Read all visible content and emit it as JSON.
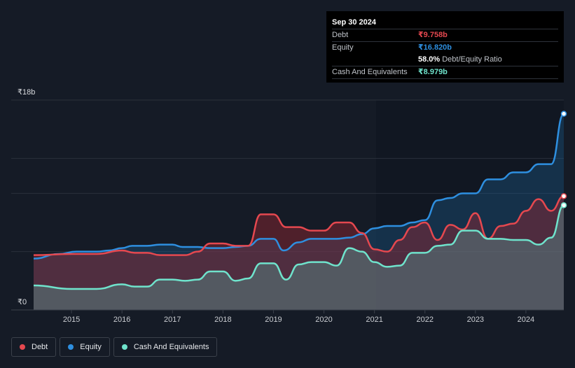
{
  "tooltip": {
    "date": "Sep 30 2024",
    "debt_label": "Debt",
    "debt_value": "₹9.758b",
    "equity_label": "Equity",
    "equity_value": "₹16.820b",
    "ratio_value": "58.0%",
    "ratio_label": "Debt/Equity Ratio",
    "cash_label": "Cash And Equivalents",
    "cash_value": "₹8.979b"
  },
  "legend": {
    "debt": "Debt",
    "equity": "Equity",
    "cash": "Cash And Equivalents"
  },
  "colors": {
    "debt": "#e5484f",
    "equity": "#2e8fe0",
    "cash": "#6fe3cc",
    "background": "#151b26"
  },
  "chart_data": {
    "type": "area",
    "title": "",
    "xlabel": "",
    "ylabel": "",
    "y_tick_labels": [
      "₹18b",
      "₹0"
    ],
    "ylim": [
      0,
      18
    ],
    "xlim": [
      2014.2,
      2024.75
    ],
    "x_ticks": [
      2015,
      2016,
      2017,
      2018,
      2019,
      2020,
      2021,
      2022,
      2023,
      2024
    ],
    "x_tick_labels": [
      "2015",
      "2016",
      "2017",
      "2018",
      "2019",
      "2020",
      "2021",
      "2022",
      "2023",
      "2024"
    ],
    "gridlines": [
      18,
      13,
      10,
      5
    ],
    "series": [
      {
        "name": "Equity",
        "key": "equity",
        "points": [
          [
            2014.25,
            4.4
          ],
          [
            2014.75,
            4.8
          ],
          [
            2015.1,
            5.0
          ],
          [
            2015.5,
            5.0
          ],
          [
            2015.75,
            5.1
          ],
          [
            2016.0,
            5.3
          ],
          [
            2016.2,
            5.5
          ],
          [
            2016.5,
            5.5
          ],
          [
            2016.75,
            5.6
          ],
          [
            2017.0,
            5.6
          ],
          [
            2017.2,
            5.4
          ],
          [
            2017.5,
            5.4
          ],
          [
            2017.75,
            5.3
          ],
          [
            2018.0,
            5.3
          ],
          [
            2018.25,
            5.4
          ],
          [
            2018.5,
            5.5
          ],
          [
            2018.75,
            6.1
          ],
          [
            2019.0,
            6.1
          ],
          [
            2019.2,
            5.1
          ],
          [
            2019.5,
            5.8
          ],
          [
            2019.75,
            6.1
          ],
          [
            2020.0,
            6.1
          ],
          [
            2020.25,
            6.1
          ],
          [
            2020.5,
            6.2
          ],
          [
            2020.75,
            6.5
          ],
          [
            2021.0,
            7.0
          ],
          [
            2021.25,
            7.2
          ],
          [
            2021.5,
            7.2
          ],
          [
            2021.75,
            7.5
          ],
          [
            2022.0,
            7.7
          ],
          [
            2022.25,
            9.4
          ],
          [
            2022.5,
            9.6
          ],
          [
            2022.75,
            10.0
          ],
          [
            2023.0,
            10.0
          ],
          [
            2023.25,
            11.2
          ],
          [
            2023.5,
            11.2
          ],
          [
            2023.75,
            11.8
          ],
          [
            2024.0,
            11.8
          ],
          [
            2024.25,
            12.5
          ],
          [
            2024.5,
            12.5
          ],
          [
            2024.75,
            16.82
          ]
        ]
      },
      {
        "name": "Debt",
        "key": "debt",
        "points": [
          [
            2014.25,
            4.7
          ],
          [
            2015.0,
            4.8
          ],
          [
            2015.5,
            4.8
          ],
          [
            2016.0,
            5.1
          ],
          [
            2016.25,
            4.9
          ],
          [
            2016.5,
            4.9
          ],
          [
            2016.75,
            4.7
          ],
          [
            2017.25,
            4.7
          ],
          [
            2017.5,
            5.0
          ],
          [
            2017.75,
            5.7
          ],
          [
            2018.0,
            5.7
          ],
          [
            2018.25,
            5.5
          ],
          [
            2018.5,
            5.5
          ],
          [
            2018.75,
            8.2
          ],
          [
            2019.0,
            8.2
          ],
          [
            2019.25,
            7.1
          ],
          [
            2019.5,
            7.1
          ],
          [
            2019.75,
            6.8
          ],
          [
            2020.0,
            6.8
          ],
          [
            2020.25,
            7.5
          ],
          [
            2020.5,
            7.5
          ],
          [
            2020.75,
            6.6
          ],
          [
            2021.0,
            5.2
          ],
          [
            2021.25,
            5.0
          ],
          [
            2021.5,
            6.0
          ],
          [
            2021.75,
            7.1
          ],
          [
            2022.0,
            7.5
          ],
          [
            2022.25,
            6.0
          ],
          [
            2022.5,
            7.3
          ],
          [
            2022.75,
            6.9
          ],
          [
            2023.0,
            8.3
          ],
          [
            2023.25,
            6.1
          ],
          [
            2023.5,
            7.2
          ],
          [
            2023.75,
            7.4
          ],
          [
            2024.0,
            8.5
          ],
          [
            2024.25,
            9.5
          ],
          [
            2024.5,
            8.5
          ],
          [
            2024.75,
            9.758
          ]
        ]
      },
      {
        "name": "Cash And Equivalents",
        "key": "cash",
        "points": [
          [
            2014.25,
            2.1
          ],
          [
            2015.0,
            1.8
          ],
          [
            2015.5,
            1.8
          ],
          [
            2016.0,
            2.2
          ],
          [
            2016.25,
            2.0
          ],
          [
            2016.5,
            2.0
          ],
          [
            2016.75,
            2.6
          ],
          [
            2017.0,
            2.6
          ],
          [
            2017.25,
            2.5
          ],
          [
            2017.5,
            2.6
          ],
          [
            2017.75,
            3.3
          ],
          [
            2018.0,
            3.3
          ],
          [
            2018.25,
            2.5
          ],
          [
            2018.5,
            2.7
          ],
          [
            2018.75,
            4.0
          ],
          [
            2019.0,
            4.0
          ],
          [
            2019.25,
            2.6
          ],
          [
            2019.5,
            3.9
          ],
          [
            2019.75,
            4.1
          ],
          [
            2020.0,
            4.1
          ],
          [
            2020.25,
            3.8
          ],
          [
            2020.5,
            5.3
          ],
          [
            2020.75,
            5.0
          ],
          [
            2021.0,
            4.1
          ],
          [
            2021.25,
            3.7
          ],
          [
            2021.5,
            3.8
          ],
          [
            2021.75,
            4.9
          ],
          [
            2022.0,
            4.9
          ],
          [
            2022.25,
            5.5
          ],
          [
            2022.5,
            5.6
          ],
          [
            2022.75,
            6.8
          ],
          [
            2023.0,
            6.8
          ],
          [
            2023.25,
            6.1
          ],
          [
            2023.5,
            6.1
          ],
          [
            2023.75,
            6.0
          ],
          [
            2024.0,
            6.0
          ],
          [
            2024.25,
            5.6
          ],
          [
            2024.5,
            6.2
          ],
          [
            2024.75,
            8.979
          ]
        ]
      }
    ]
  }
}
